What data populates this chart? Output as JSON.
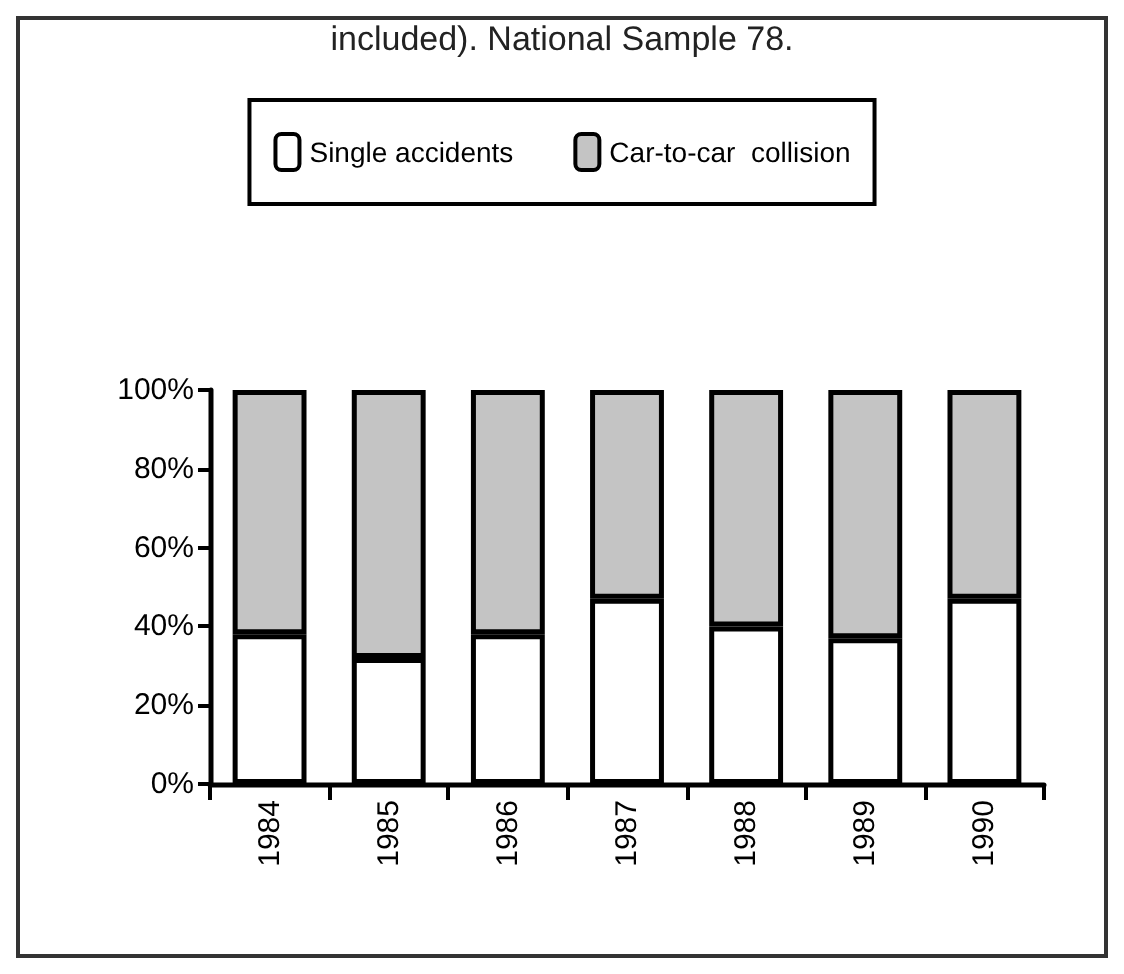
{
  "chart_data": {
    "type": "bar",
    "title": "included). National Sample 78.",
    "categories": [
      "1984",
      "1985",
      "1986",
      "1987",
      "1988",
      "1989",
      "1990"
    ],
    "series": [
      {
        "name": "Single accidents",
        "color": "#ffffff",
        "values": [
          38,
          32,
          38,
          47,
          40,
          37,
          47
        ]
      },
      {
        "name": "Car-to-car  collision",
        "color": "#c4c4c4",
        "values": [
          62,
          68,
          62,
          53,
          60,
          63,
          53
        ]
      }
    ],
    "stacked": true,
    "ylim": [
      0,
      100
    ],
    "yticks": [
      {
        "value": 0,
        "label": "0%"
      },
      {
        "value": 20,
        "label": "20%"
      },
      {
        "value": 40,
        "label": "40%"
      },
      {
        "value": 60,
        "label": "60%"
      },
      {
        "value": 80,
        "label": "80%"
      },
      {
        "value": 100,
        "label": "100%"
      }
    ],
    "grid": false,
    "legend": "top"
  }
}
